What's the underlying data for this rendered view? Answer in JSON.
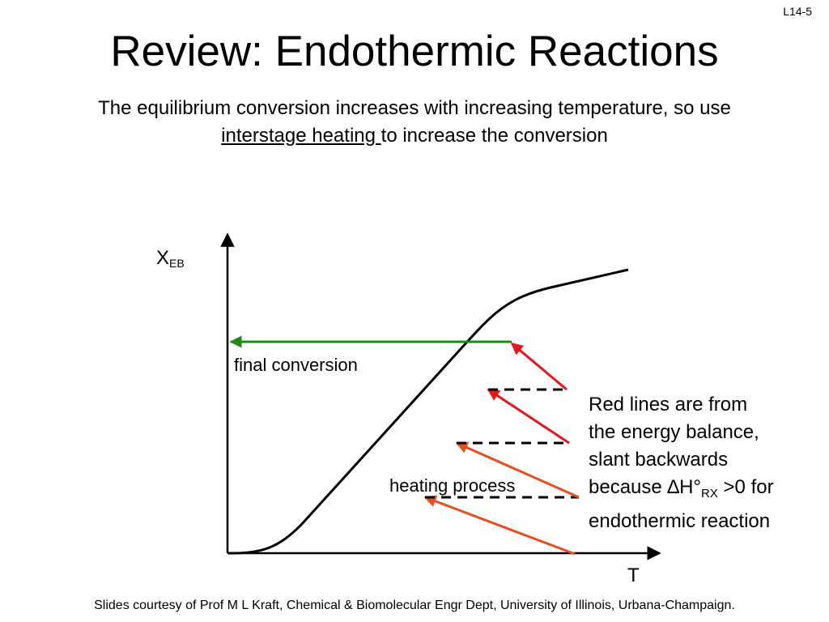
{
  "slide": {
    "number": "L14-5",
    "title": "Review: Endothermic Reactions",
    "subtitle_line1": "The equilibrium conversion increases with increasing temperature, so use",
    "subtitle_underlined": "interstage heating ",
    "subtitle_rest": "to increase the conversion",
    "footer": "Slides courtesy of Prof M L Kraft, Chemical & Biomolecular Engr Dept, University of Illinois, Urbana-Champaign."
  },
  "diagram": {
    "y_axis_label": "X",
    "y_axis_label_sub": "EB",
    "x_axis_label": "T",
    "final_conversion_label": "final conversion",
    "heating_process_label": "heating process",
    "colors": {
      "energy_balance": "#e8161b",
      "energy_balance_lower": "#e4501e",
      "final_conversion": "#1e8c14",
      "heating": "#000000",
      "equilibrium_curve": "#000000"
    }
  },
  "note": {
    "line1": "Red lines are from",
    "line2": "the energy balance,",
    "line3": "slant backwards",
    "line4_pre": "because ∆H°",
    "line4_sub": "RX",
    "line4_post": " >0 for",
    "line5": "endothermic reaction"
  }
}
